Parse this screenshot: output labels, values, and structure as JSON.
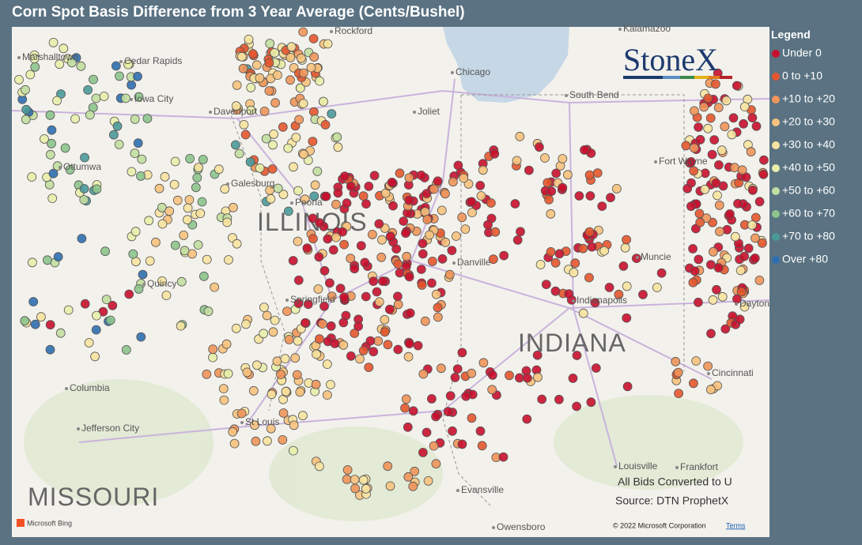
{
  "header": {
    "title": "Corn Spot Basis Difference from 3 Year Average (Cents/Bushel)"
  },
  "legend": {
    "title": "Legend",
    "items": [
      {
        "label": "Under 0",
        "color": "#c8102e"
      },
      {
        "label": "0 to +10",
        "color": "#e4572e"
      },
      {
        "label": "+10 to +20",
        "color": "#f0955a"
      },
      {
        "label": "+20 to +30",
        "color": "#f6c27d"
      },
      {
        "label": "+30 to +40",
        "color": "#f7e3a0"
      },
      {
        "label": "+40 to +50",
        "color": "#e8eeaa"
      },
      {
        "label": "+50 to +60",
        "color": "#c2dea0"
      },
      {
        "label": "+60 to +70",
        "color": "#8cc48c"
      },
      {
        "label": "+70 to +80",
        "color": "#4a9a9a"
      },
      {
        "label": "Over +80",
        "color": "#2f6fb0"
      }
    ]
  },
  "map": {
    "states": [
      "ILLINOIS",
      "INDIANA",
      "MISSOURI"
    ],
    "cities": [
      "Rockford",
      "Chicago",
      "Kalamazoo",
      "Marshalltown",
      "Cedar Rapids",
      "Iowa City",
      "Davenport",
      "Joliet",
      "South Bend",
      "Ottumwa",
      "Galesburg",
      "Peoria",
      "Fort Wayne",
      "Danville",
      "Quincy",
      "Springfield",
      "Indianapolis",
      "Muncie",
      "Dayton",
      "Cincinnati",
      "Columbia",
      "Jefferson City",
      "St Louis",
      "Louisville",
      "Frankfort",
      "Evansville",
      "Owensboro"
    ]
  },
  "notes": [
    "All Bids Converted to U",
    "Source: DTN ProphetX"
  ],
  "logo": "StoneX",
  "attribution": {
    "provider": "Microsoft Bing",
    "copyright": "© 2022 Microsoft Corporation",
    "terms": "Terms"
  }
}
